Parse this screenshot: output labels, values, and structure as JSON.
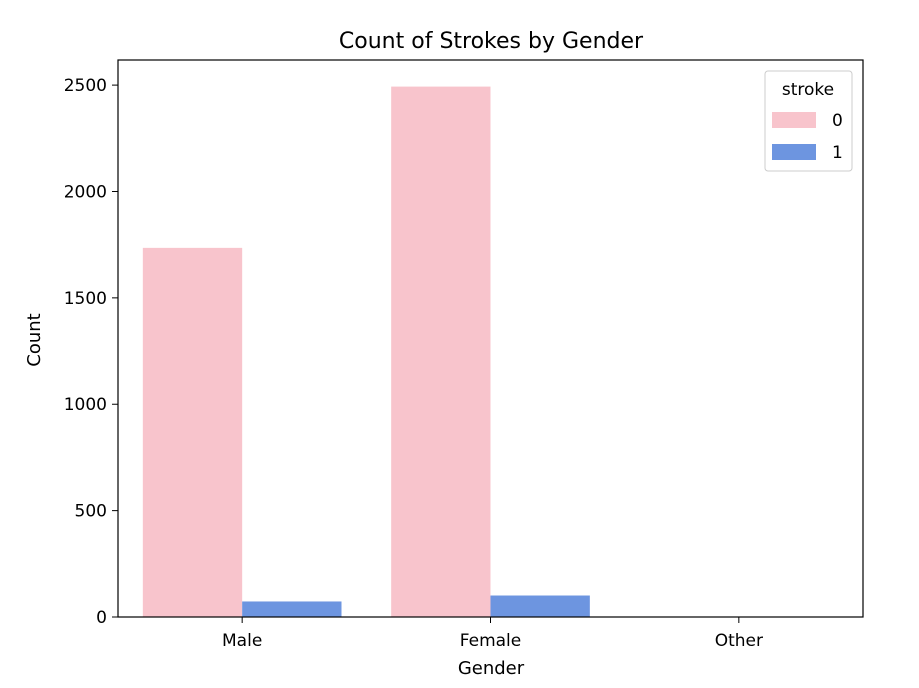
{
  "chart_data": {
    "type": "bar",
    "title": "Count of Strokes by Gender",
    "xlabel": "Gender",
    "ylabel": "Count",
    "categories": [
      "Male",
      "Female",
      "Other"
    ],
    "series": [
      {
        "name": "0",
        "values": [
          1735,
          2493,
          1
        ],
        "color": "#f8c4cc"
      },
      {
        "name": "1",
        "values": [
          73,
          101,
          0
        ],
        "color": "#6d95e0"
      }
    ],
    "ylim": [
      0,
      2618
    ],
    "yticks": [
      0,
      500,
      1000,
      1500,
      2000,
      2500
    ],
    "legend": {
      "title": "stroke",
      "placement": "top-right"
    },
    "grid": false
  }
}
